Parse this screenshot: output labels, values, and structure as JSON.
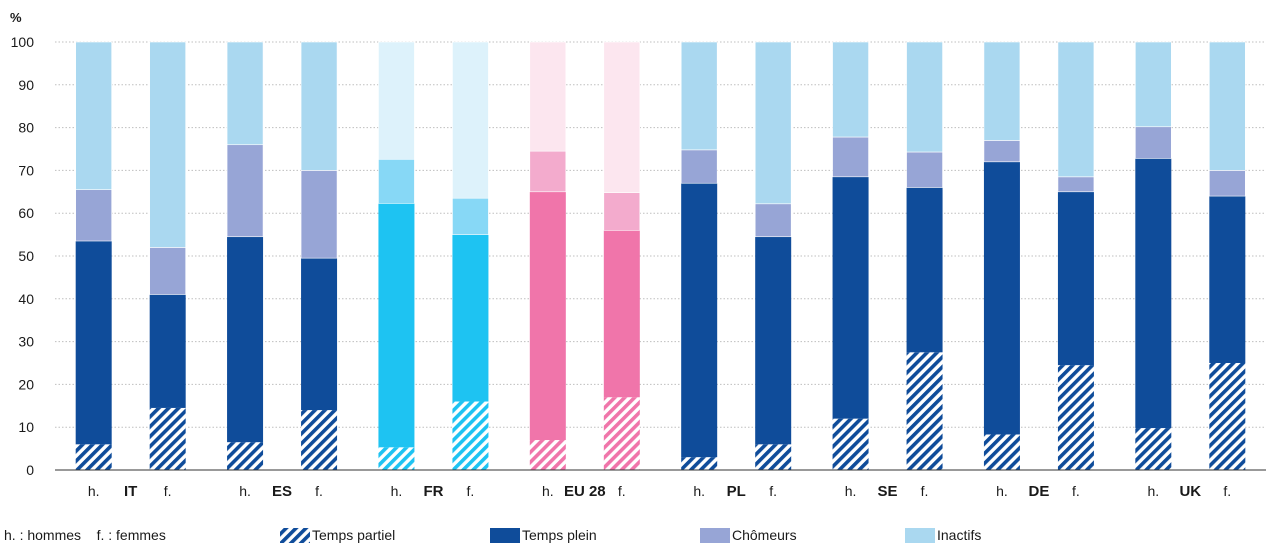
{
  "chart_data": {
    "type": "bar",
    "stacked": true,
    "unit": "%",
    "ylim": [
      0,
      100
    ],
    "yticks": [
      0,
      10,
      20,
      30,
      40,
      50,
      60,
      70,
      80,
      90,
      100
    ],
    "grid": true,
    "legend_placement": "bottom",
    "note": "h. : hommes    f. : femmes",
    "countries": [
      "IT",
      "ES",
      "FR",
      "EU 28",
      "PL",
      "SE",
      "DE",
      "UK"
    ],
    "sex_labels": [
      "h.",
      "f."
    ],
    "series_names": [
      "Temps partiel",
      "Temps plein",
      "Chômeurs",
      "Inactifs"
    ],
    "bars": [
      {
        "country": "IT",
        "sex": "h.",
        "values": [
          6,
          47.5,
          12,
          34.5
        ]
      },
      {
        "country": "IT",
        "sex": "f.",
        "values": [
          14.5,
          26.5,
          11,
          48
        ]
      },
      {
        "country": "ES",
        "sex": "h.",
        "values": [
          6.5,
          48,
          21.5,
          24
        ]
      },
      {
        "country": "ES",
        "sex": "f.",
        "values": [
          14,
          35.5,
          20.5,
          30
        ]
      },
      {
        "country": "FR",
        "sex": "h.",
        "values": [
          5.3,
          57,
          10.3,
          27.4
        ]
      },
      {
        "country": "FR",
        "sex": "f.",
        "values": [
          16,
          39,
          8.5,
          36.5
        ]
      },
      {
        "country": "EU 28",
        "sex": "h.",
        "values": [
          7,
          58,
          9.5,
          25.5
        ]
      },
      {
        "country": "EU 28",
        "sex": "f.",
        "values": [
          17,
          39,
          8.8,
          35.2
        ]
      },
      {
        "country": "PL",
        "sex": "h.",
        "values": [
          3,
          64,
          7.8,
          25.2
        ]
      },
      {
        "country": "PL",
        "sex": "f.",
        "values": [
          6,
          48.5,
          7.7,
          37.8
        ]
      },
      {
        "country": "SE",
        "sex": "h.",
        "values": [
          12,
          56.5,
          9.3,
          22.2
        ]
      },
      {
        "country": "SE",
        "sex": "f.",
        "values": [
          27.5,
          38.5,
          8.3,
          25.7
        ]
      },
      {
        "country": "DE",
        "sex": "h.",
        "values": [
          8.3,
          63.7,
          5,
          23
        ]
      },
      {
        "country": "DE",
        "sex": "f.",
        "values": [
          24.5,
          40.5,
          3.5,
          31.5
        ]
      },
      {
        "country": "UK",
        "sex": "h.",
        "values": [
          9.8,
          63,
          7.4,
          19.8
        ]
      },
      {
        "country": "UK",
        "sex": "f.",
        "values": [
          25,
          39,
          6,
          30
        ]
      }
    ],
    "colors": {
      "default": [
        "#0f4c9a",
        "#0f4c9a",
        "#97a5d6",
        "#aad8f0"
      ],
      "FR": [
        "#1ec3f2",
        "#1ec3f2",
        "#87d8f6",
        "#ddf2fb"
      ],
      "EU 28": [
        "#f075aa",
        "#f075aa",
        "#f3abcd",
        "#fce6ef"
      ],
      "grid": "#bfbfbf",
      "axis": "#333333"
    }
  }
}
